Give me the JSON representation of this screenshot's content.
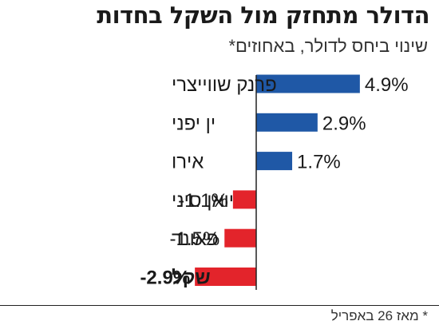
{
  "title": "הדולר מתחזק מול השקל בחדות",
  "subtitle": "שינוי ביחס לדולר, באחוזים*",
  "footnote": "* מאז 26 באפריל",
  "colors": {
    "positive": "#1f58a6",
    "negative": "#e3242b",
    "axis": "#222222",
    "text": "#1a1a1a"
  },
  "chart_data": {
    "type": "bar",
    "orientation": "horizontal",
    "categories": [
      "פרנק שווייצרי",
      "ין יפני",
      "אירו",
      "יואן סיני",
      "פאונד",
      "שקל"
    ],
    "value_labels": [
      "4.9%",
      "2.9%",
      "1.7%",
      "-1.1%",
      "-1.5%",
      "-2.9%"
    ],
    "values": [
      4.9,
      2.9,
      1.7,
      -1.1,
      -1.5,
      -2.9
    ],
    "highlight": "שקל",
    "unit": "%",
    "xlim": [
      -2.9,
      4.9
    ],
    "grid": false,
    "legend": "none"
  }
}
